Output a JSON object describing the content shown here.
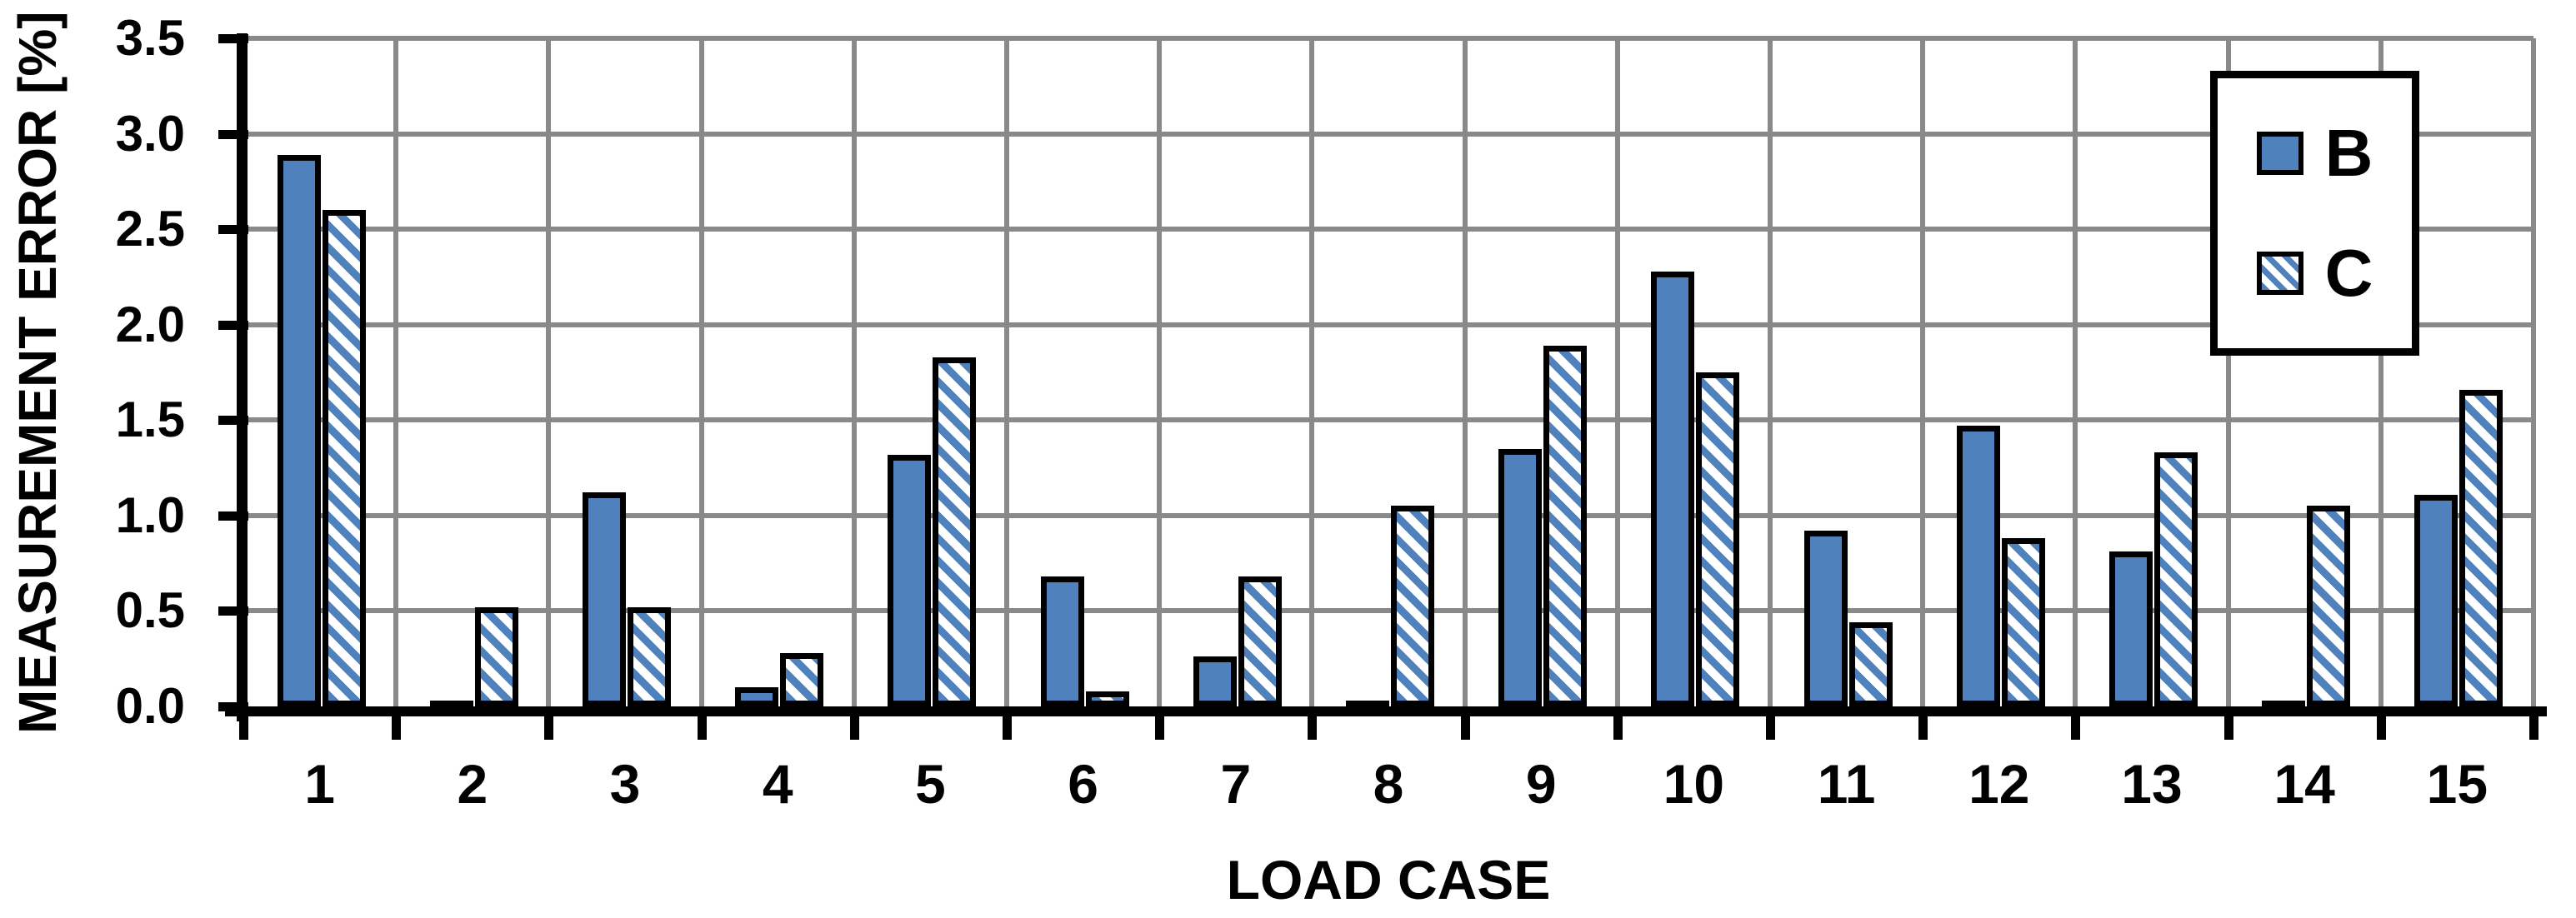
{
  "chart_data": {
    "type": "bar",
    "title": "",
    "xlabel": "LOAD CASE",
    "ylabel": "MEASUREMENT ERROR [%]",
    "categories": [
      "1",
      "2",
      "3",
      "4",
      "5",
      "6",
      "7",
      "8",
      "9",
      "10",
      "11",
      "12",
      "13",
      "14",
      "15"
    ],
    "series": [
      {
        "name": "B",
        "fill": "solid",
        "color": "#4F81BD",
        "values": [
          2.89,
          0.03,
          1.12,
          0.1,
          1.32,
          0.68,
          0.26,
          0.03,
          1.35,
          2.28,
          0.92,
          1.47,
          0.81,
          0.03,
          1.11
        ]
      },
      {
        "name": "C",
        "fill": "diagonal-hatch",
        "color": "#4F81BD",
        "values": [
          2.6,
          0.52,
          0.52,
          0.28,
          1.83,
          0.08,
          0.68,
          1.05,
          1.89,
          1.75,
          0.44,
          0.88,
          1.33,
          1.05,
          1.66
        ]
      }
    ],
    "ylim": [
      0,
      3.5
    ],
    "ytick_step": 0.5,
    "ytick_labels": [
      "0.0",
      "0.5",
      "1.0",
      "1.5",
      "2.0",
      "2.5",
      "3.0",
      "3.5"
    ],
    "grid": true,
    "legend_position": "top-right",
    "colors": {
      "bar_blue": "#4F81BD",
      "gridline_gray": "#898989",
      "axis_black": "#000000",
      "background": "#FFFFFF"
    }
  }
}
